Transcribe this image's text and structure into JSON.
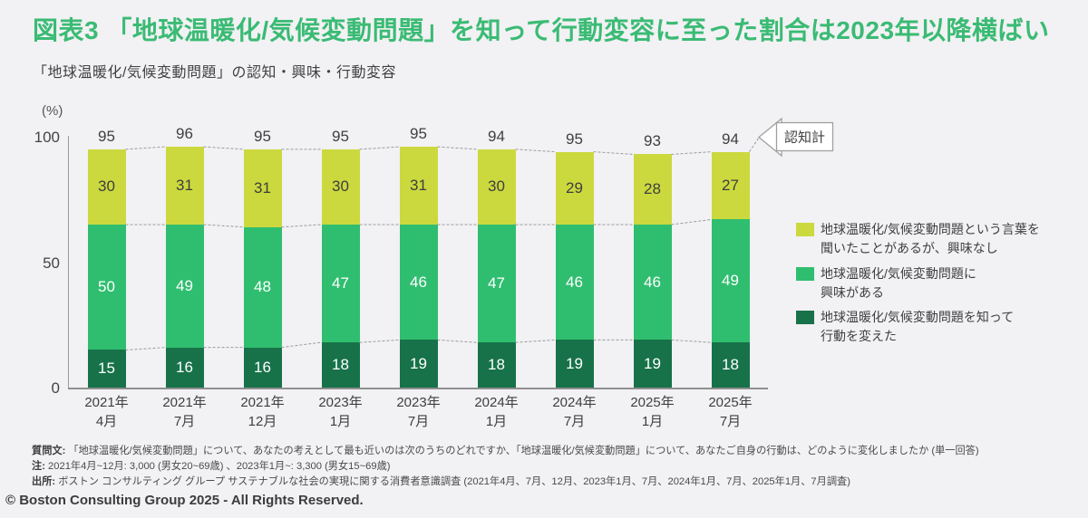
{
  "page": {
    "title": "図表3  「地球温暖化/気候変動問題」を知って行動変容に至った割合は2023年以降横ばい",
    "subtitle": "「地球温暖化/気候変動問題」の認知・興味・行動変容",
    "copyright": "© Boston Consulting Group 2025 - All Rights Reserved."
  },
  "colors": {
    "background": "#F2F1F4",
    "title_green": "#3ABB74",
    "dark_green": "#177249",
    "mid_green": "#2FBE6F",
    "yellow_green": "#CBD93E",
    "axis_gray": "#9a9a9a",
    "dashed_gray": "#9B9B9B",
    "text_dark": "#3f3f3f"
  },
  "chart_data": {
    "type": "bar",
    "stacked": true,
    "title": "「地球温暖化/気候変動問題」の認知・興味・行動変容",
    "y_unit": "(%)",
    "ylim": [
      0,
      100
    ],
    "yticks": [
      0,
      50,
      100
    ],
    "grid": false,
    "categories": [
      {
        "line1": "2021年",
        "line2": "4月"
      },
      {
        "line1": "2021年",
        "line2": "7月"
      },
      {
        "line1": "2021年",
        "line2": "12月"
      },
      {
        "line1": "2023年",
        "line2": "1月"
      },
      {
        "line1": "2023年",
        "line2": "7月"
      },
      {
        "line1": "2024年",
        "line2": "1月"
      },
      {
        "line1": "2024年",
        "line2": "7月"
      },
      {
        "line1": "2025年",
        "line2": "1月"
      },
      {
        "line1": "2025年",
        "line2": "7月"
      }
    ],
    "series": [
      {
        "name": "地球温暖化/気候変動問題を知って行動を変えた",
        "color": "#177249",
        "label_color": "#ffffff",
        "values": [
          15,
          16,
          16,
          18,
          19,
          18,
          19,
          19,
          18
        ]
      },
      {
        "name": "地球温暖化/気候変動問題に興味がある",
        "color": "#2FBE6F",
        "label_color": "#ffffff",
        "values": [
          50,
          49,
          48,
          47,
          46,
          47,
          46,
          46,
          49
        ]
      },
      {
        "name": "地球温暖化/気候変動問題という言葉を聞いたことがあるが、興味なし",
        "color": "#CBD93E",
        "label_color": "#3e3e3e",
        "values": [
          30,
          31,
          31,
          30,
          31,
          30,
          29,
          28,
          27
        ]
      }
    ],
    "totals": [
      95,
      96,
      95,
      95,
      95,
      94,
      95,
      93,
      94
    ],
    "totals_label": "認知計",
    "legend_position": "right"
  },
  "legend": {
    "items": [
      {
        "color": "#CBD93E",
        "label": "地球温暖化/気候変動問題という言葉を\n聞いたことがあるが、興味なし"
      },
      {
        "color": "#2FBE6F",
        "label": "地球温暖化/気候変動問題に\n興味がある"
      },
      {
        "color": "#177249",
        "label": "地球温暖化/気候変動問題を知って\n行動を変えた"
      }
    ]
  },
  "footnotes": {
    "question_label": "質問文:",
    "question": "「地球温暖化/気候変動問題」について、あなたの考えとして最も近いのは次のうちのどれですか、「地球温暖化/気候変動問題」について、あなたご自身の行動は、どのように変化しましたか (単一回答)",
    "note_label": "注:",
    "note": "2021年4月~12月: 3,000 (男女20~69歳) 、2023年1月~: 3,300 (男女15~69歳)",
    "source_label": "出所:",
    "source": "ボストン コンサルティング グループ サステナブルな社会の実現に関する消費者意識調査 (2021年4月、7月、12月、2023年1月、7月、2024年1月、7月、2025年1月、7月調査)"
  }
}
